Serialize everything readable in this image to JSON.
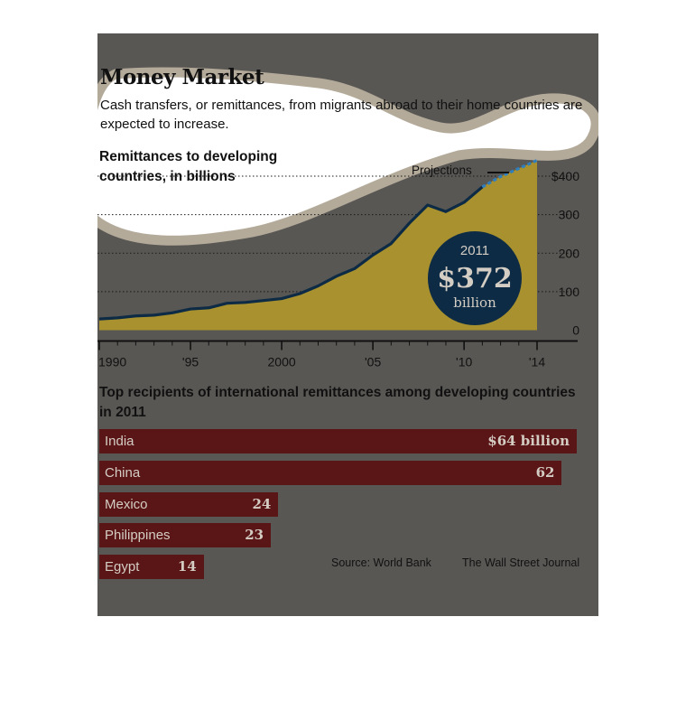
{
  "header": {
    "title": "Money Market",
    "subtitle": "Cash transfers, or remittances, from migrants abroad to their home countries are expected to increase."
  },
  "colors": {
    "panel": "#595754",
    "highlight": "#ffffff",
    "area_fill": "#a8912e",
    "line": "#0d2b45",
    "projection_line": "#2e7fbf",
    "callout": "#0d2b45",
    "bar": "#5a1516",
    "bar_text": "#d4cdc4"
  },
  "chart_data": [
    {
      "type": "area",
      "title": "Remittances to developing countries, in billions",
      "x_tick_labels": [
        "1990",
        "'95",
        "2000",
        "'05",
        "'10",
        "'14"
      ],
      "y_tick_labels": [
        "0",
        "100",
        "200",
        "300",
        "$400"
      ],
      "ylim": [
        0,
        400
      ],
      "xlim": [
        1990,
        2014
      ],
      "grid": "dotted horizontal",
      "series": [
        {
          "x": [
            1990,
            1991,
            1992,
            1993,
            1994,
            1995,
            1996,
            1997,
            1998,
            1999,
            2000,
            2001,
            2002,
            2003,
            2004,
            2005,
            2006,
            2007,
            2008,
            2009,
            2010,
            2011
          ],
          "values": [
            29,
            32,
            37,
            39,
            45,
            55,
            58,
            70,
            72,
            77,
            82,
            95,
            115,
            140,
            160,
            195,
            225,
            278,
            325,
            308,
            332,
            372
          ]
        }
      ],
      "projection": {
        "label": "Projections",
        "x": [
          2011,
          2012,
          2013,
          2014
        ],
        "values": [
          372,
          399,
          420,
          441
        ]
      },
      "callout": {
        "year": "2011",
        "value": "$372",
        "unit": "billion"
      }
    },
    {
      "type": "bar",
      "title": "Top recipients of international remittances among developing countries in 2011",
      "categories": [
        "India",
        "China",
        "Mexico",
        "Philippines",
        "Egypt"
      ],
      "values": [
        64,
        62,
        24,
        23,
        14
      ],
      "value_labels": [
        "$64 billion",
        "62",
        "24",
        "23",
        "14"
      ]
    }
  ],
  "footer": {
    "source": "Source: World Bank",
    "publisher": "The Wall Street Journal"
  }
}
